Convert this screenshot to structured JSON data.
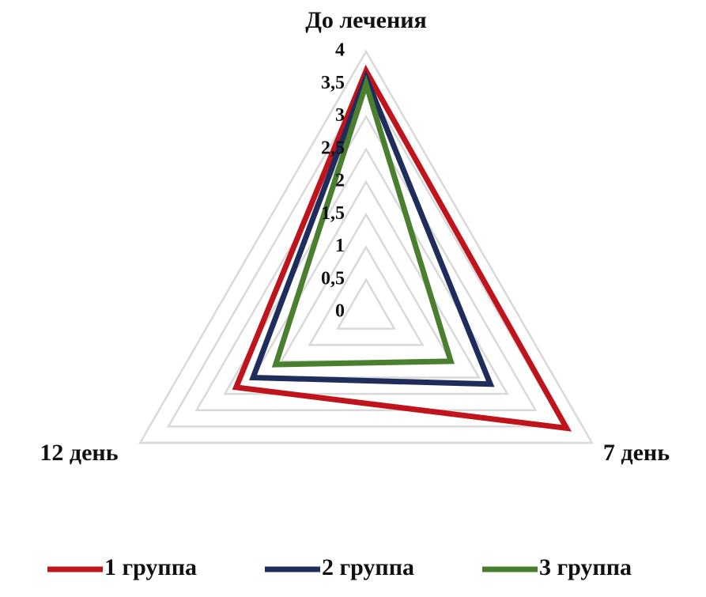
{
  "chart_data": {
    "type": "radar",
    "categories": [
      "До лечения",
      "7 день",
      "12 день"
    ],
    "ylim": [
      0,
      4
    ],
    "yticks": [
      0,
      {
        "value": 0.5,
        "label": "0,5"
      },
      1,
      {
        "value": 1.5,
        "label": "1,5"
      },
      2,
      {
        "value": 2.5,
        "label": "2,5"
      },
      3,
      {
        "value": 3.5,
        "label": "3,5"
      },
      4
    ],
    "grid": true,
    "legend": "bottom",
    "series": [
      {
        "name": "1 группа",
        "color": "#c0141c",
        "values": [
          3.7,
          3.55,
          2.3
        ]
      },
      {
        "name": "2 группа",
        "color": "#1f2d5c",
        "values": [
          3.6,
          2.2,
          2.0
        ]
      },
      {
        "name": "3 группа",
        "color": "#4a7f2f",
        "values": [
          3.5,
          1.5,
          1.6
        ]
      }
    ]
  }
}
